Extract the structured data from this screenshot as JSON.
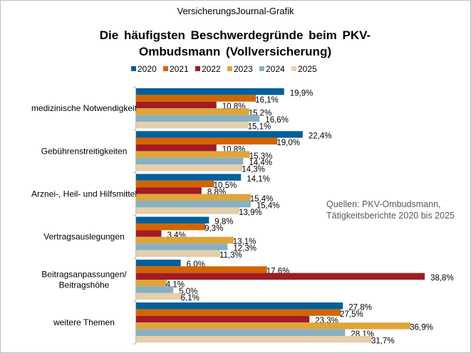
{
  "source_label": "VersicherungsJournal-Grafik",
  "chart_data": {
    "type": "bar",
    "orientation": "horizontal",
    "title": "Die häufigsten Beschwerdegründe beim PKV-Ombudsmann (Vollversicherung)",
    "categories": [
      "medizinische Notwendigkeit",
      "Gebührenstreitigkeiten",
      "Arznei-, Heil- und Hilfsmittel",
      "Vertragsauslegungen",
      "Beitragsanpassungen/ Beitragshöhe",
      "weitere Themen"
    ],
    "series": [
      {
        "name": "2020",
        "color": "#00609a",
        "values": [
          19.9,
          22.4,
          14.1,
          9.8,
          6.0,
          27.8
        ]
      },
      {
        "name": "2021",
        "color": "#d26500",
        "values": [
          16.1,
          19.0,
          10.5,
          9.3,
          17.6,
          27.5
        ]
      },
      {
        "name": "2022",
        "color": "#a11c24",
        "values": [
          10.8,
          10.8,
          8.8,
          3.4,
          38.8,
          23.3
        ]
      },
      {
        "name": "2023",
        "color": "#dea53a",
        "values": [
          15.2,
          15.3,
          15.4,
          13.1,
          4.1,
          36.9
        ]
      },
      {
        "name": "2024",
        "color": "#87b0c4",
        "values": [
          16.6,
          14.4,
          15.4,
          12.3,
          5.0,
          28.1
        ]
      },
      {
        "name": "2025",
        "color": "#e4cfad",
        "values": [
          15.1,
          14.3,
          13.9,
          11.3,
          6.1,
          31.7
        ]
      }
    ],
    "value_format": "percent, comma decimal",
    "legend": "top",
    "grid": false,
    "annotation": "Quellen: PKV-Ombudsmann, Tätigkeitsberichte 2020 bis 2025"
  },
  "title_lines": [
    "Die häufigsten Beschwerdegründe beim PKV-",
    "Ombudsmann (Vollversicherung)"
  ],
  "note_lines": [
    "Quellen: PKV-Ombudsmann,",
    "Tätigkeitsberichte 2020 bis 2025"
  ],
  "category_lines": [
    [
      "medizinische Notwendigkeit"
    ],
    [
      "Gebührenstreitigkeiten"
    ],
    [
      "Arznei-, Heil- und Hilfsmittel"
    ],
    [
      "Vertragsauslegungen"
    ],
    [
      "Beitragsanpassungen/",
      "Beitragshöhe"
    ],
    [
      "weitere Themen"
    ]
  ]
}
